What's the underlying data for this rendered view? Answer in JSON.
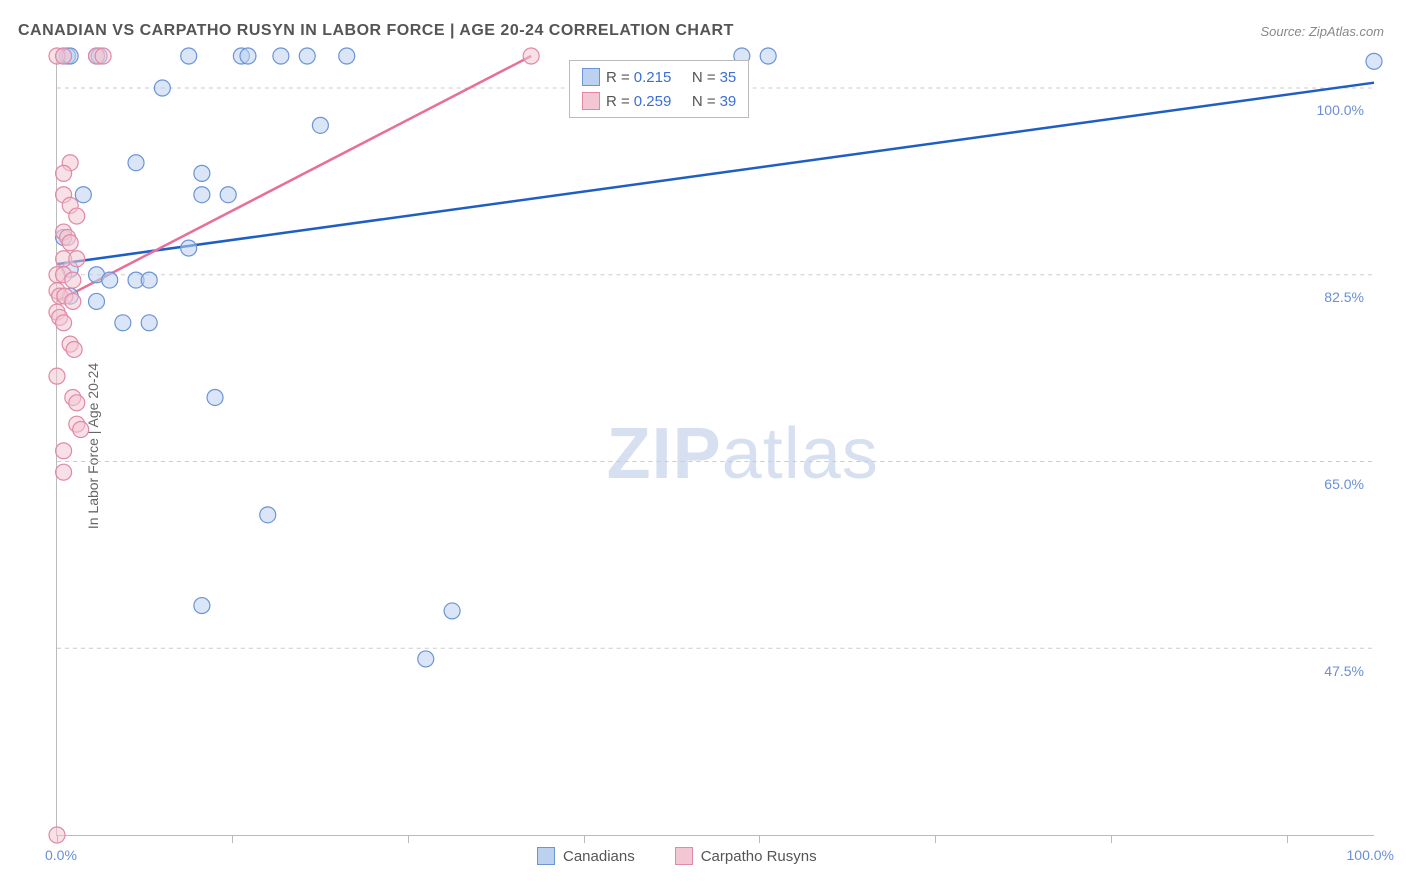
{
  "title": "CANADIAN VS CARPATHO RUSYN IN LABOR FORCE | AGE 20-24 CORRELATION CHART",
  "source": "Source: ZipAtlas.com",
  "y_axis_label": "In Labor Force | Age 20-24",
  "watermark": {
    "bold": "ZIP",
    "rest": "atlas"
  },
  "chart": {
    "type": "scatter",
    "xlim": [
      0,
      100
    ],
    "ylim": [
      30,
      103
    ],
    "x_ticks": [
      0,
      13.3,
      26.6,
      40,
      53.3,
      66.6,
      80,
      93.3
    ],
    "x_label_min": "0.0%",
    "x_label_max": "100.0%",
    "y_gridlines": [
      {
        "value": 100.0,
        "label": "100.0%"
      },
      {
        "value": 82.5,
        "label": "82.5%"
      },
      {
        "value": 65.0,
        "label": "65.0%"
      },
      {
        "value": 47.5,
        "label": "47.5%"
      }
    ],
    "background_color": "#ffffff",
    "grid_color": "#cccccc",
    "axis_color": "#bbbbbb",
    "marker_radius": 8,
    "marker_opacity": 0.55,
    "marker_stroke_width": 1.2,
    "line_width": 2.5
  },
  "series": [
    {
      "name": "Canadians",
      "color_fill": "#bcd1f0",
      "color_stroke": "#6a94d6",
      "line_color": "#1f5fc4",
      "R": "0.215",
      "N": "35",
      "trend": {
        "x1": 0,
        "y1": 83.5,
        "x2": 100,
        "y2": 100.5
      },
      "points": [
        [
          0.5,
          103
        ],
        [
          0.8,
          103
        ],
        [
          1,
          103
        ],
        [
          3,
          103
        ],
        [
          3.2,
          103
        ],
        [
          10,
          103
        ],
        [
          14,
          103
        ],
        [
          14.5,
          103
        ],
        [
          17,
          103
        ],
        [
          19,
          103
        ],
        [
          22,
          103
        ],
        [
          52,
          103
        ],
        [
          54,
          103
        ],
        [
          100,
          102.5
        ],
        [
          8,
          100
        ],
        [
          20,
          96.5
        ],
        [
          6,
          93
        ],
        [
          11,
          92
        ],
        [
          2,
          90
        ],
        [
          11,
          90
        ],
        [
          13,
          90
        ],
        [
          0.5,
          86
        ],
        [
          10,
          85
        ],
        [
          1,
          83
        ],
        [
          3,
          82.5
        ],
        [
          4,
          82
        ],
        [
          6,
          82
        ],
        [
          7,
          82
        ],
        [
          1,
          80.5
        ],
        [
          3,
          80
        ],
        [
          5,
          78
        ],
        [
          7,
          78
        ],
        [
          12,
          71
        ],
        [
          16,
          60
        ],
        [
          11,
          51.5
        ],
        [
          30,
          51
        ],
        [
          28,
          46.5
        ]
      ]
    },
    {
      "name": "Carpatho Rusyns",
      "color_fill": "#f3c6d4",
      "color_stroke": "#e089a5",
      "line_color": "#e76f98",
      "R": "0.259",
      "N": "39",
      "trend": {
        "x1": 0,
        "y1": 80,
        "x2": 36,
        "y2": 103
      },
      "points": [
        [
          0,
          103
        ],
        [
          0.5,
          103
        ],
        [
          3,
          103
        ],
        [
          3.5,
          103
        ],
        [
          36,
          103
        ],
        [
          1,
          93
        ],
        [
          0.5,
          92
        ],
        [
          0.5,
          90
        ],
        [
          1,
          89
        ],
        [
          1.5,
          88
        ],
        [
          0.5,
          86.5
        ],
        [
          0.8,
          86
        ],
        [
          1,
          85.5
        ],
        [
          0.5,
          84
        ],
        [
          1.5,
          84
        ],
        [
          0,
          82.5
        ],
        [
          0.5,
          82.5
        ],
        [
          1.2,
          82
        ],
        [
          0,
          81
        ],
        [
          0.2,
          80.5
        ],
        [
          0.6,
          80.5
        ],
        [
          1.2,
          80
        ],
        [
          0,
          79
        ],
        [
          0.2,
          78.5
        ],
        [
          0.5,
          78
        ],
        [
          1,
          76
        ],
        [
          1.3,
          75.5
        ],
        [
          0,
          73
        ],
        [
          1.2,
          71
        ],
        [
          1.5,
          70.5
        ],
        [
          1.5,
          68.5
        ],
        [
          1.8,
          68
        ],
        [
          0.5,
          66
        ],
        [
          0.5,
          64
        ],
        [
          0,
          30
        ]
      ]
    }
  ],
  "legend_box": {
    "rows": [
      {
        "swatch_fill": "#bcd1f0",
        "swatch_stroke": "#6a94d6",
        "R_label": "R =",
        "R_val": "0.215",
        "N_label": "N =",
        "N_val": "35"
      },
      {
        "swatch_fill": "#f3c6d4",
        "swatch_stroke": "#e089a5",
        "R_label": "R =",
        "R_val": "0.259",
        "N_label": "N =",
        "N_val": "39"
      }
    ]
  },
  "bottom_legend": [
    {
      "swatch_fill": "#bcd1f0",
      "swatch_stroke": "#6a94d6",
      "label": "Canadians"
    },
    {
      "swatch_fill": "#f3c6d4",
      "swatch_stroke": "#e089a5",
      "label": "Carpatho Rusyns"
    }
  ]
}
